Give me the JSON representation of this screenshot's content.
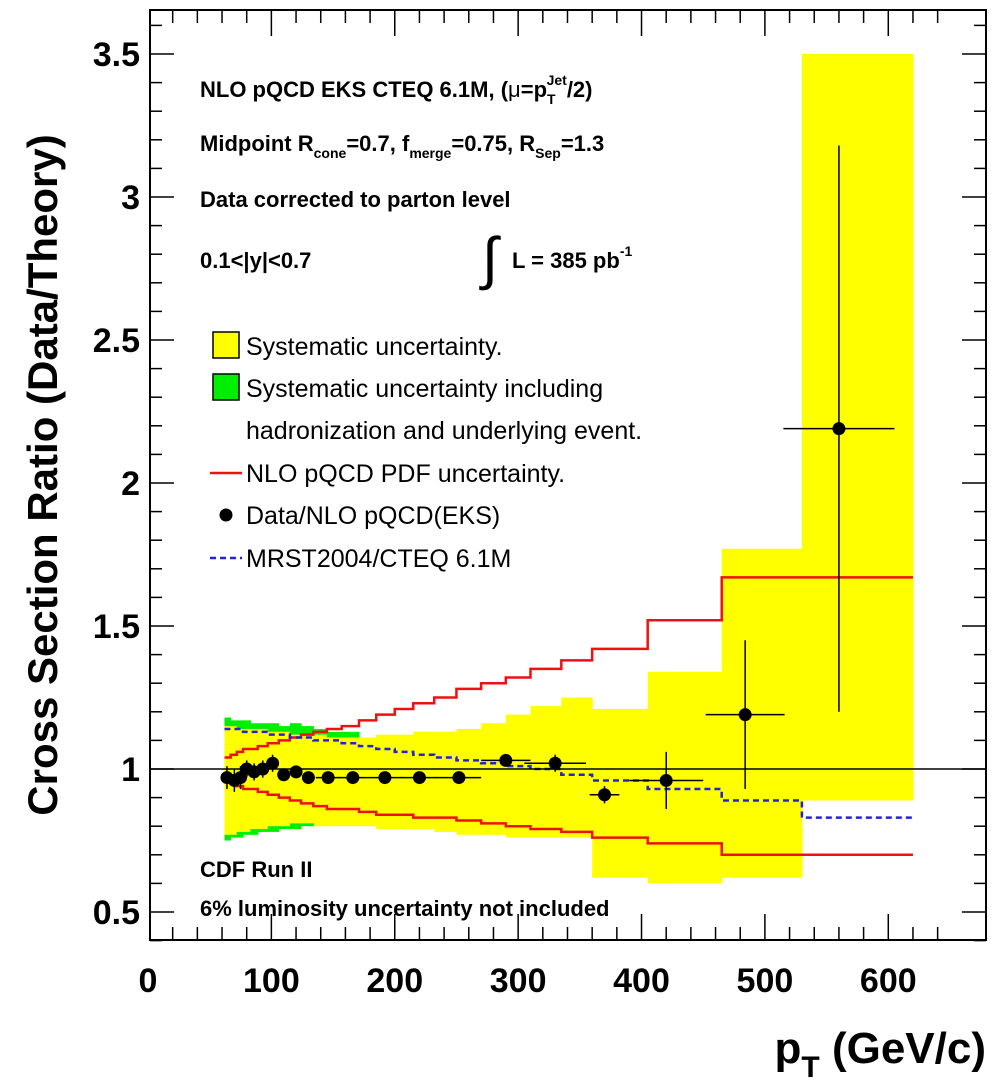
{
  "chart_data": {
    "type": "line",
    "ylabel": "Cross Section Ratio (Data/Theory)",
    "xlabel_main": "p",
    "xlabel_sub": "T",
    "xlabel_unit": " (GeV/c)",
    "xlim": [
      0,
      650
    ],
    "ylim": [
      0.37,
      3.62
    ],
    "x_ticks": [
      0,
      100,
      200,
      300,
      400,
      500,
      600
    ],
    "y_ticks": [
      0.5,
      1,
      1.5,
      2,
      2.5,
      3,
      3.5
    ],
    "reference_line": 1,
    "annotations": {
      "line1_a": "NLO pQCD EKS CTEQ 6.1M, (",
      "line1_mu": "μ",
      "line1_b": "=p",
      "line1_sub": "T",
      "line1_sup": "Jet",
      "line1_c": "/2)",
      "line2_a": "Midpoint R",
      "line2_sub1": "cone",
      "line2_b": "=0.7, f",
      "line2_sub2": "merge",
      "line2_c": "=0.75, R",
      "line2_sub3": "Sep",
      "line2_d": "=1.3",
      "line3": "Data corrected to parton level",
      "line4": "0.1<|y|<0.7",
      "integral": "∫",
      "lumi": "L = 385 pb",
      "lumi_sup": "-1",
      "cdf": "CDF Run II",
      "lumi_note": "6% luminosity  uncertainty not included"
    },
    "legend": {
      "placement": "center-left",
      "items": [
        {
          "key": "yellow",
          "label": "Systematic uncertainty."
        },
        {
          "key": "green",
          "label": "Systematic uncertainty including"
        },
        {
          "key": "none",
          "label": "hadronization and underlying event."
        },
        {
          "key": "red",
          "label": "NLO pQCD PDF uncertainty."
        },
        {
          "key": "dot",
          "label": "Data/NLO pQCD(EKS)"
        },
        {
          "key": "blue",
          "label": "MRST2004/CTEQ 6.1M"
        }
      ]
    },
    "colors": {
      "yellow": "#ffff00",
      "green": "#00ee00",
      "red": "#ee1111",
      "blue": "#2222dd",
      "data": "#000000"
    },
    "bin_edges": [
      62,
      67,
      72,
      77,
      83,
      89,
      97,
      106,
      115,
      124,
      134,
      145,
      157,
      171,
      185,
      200,
      215,
      232,
      250,
      270,
      290,
      310,
      335,
      360,
      405,
      465,
      530,
      620
    ],
    "yellow_band": {
      "upper": [
        1.15,
        1.15,
        1.14,
        1.14,
        1.14,
        1.14,
        1.13,
        1.13,
        1.12,
        1.12,
        1.12,
        1.11,
        1.11,
        1.11,
        1.12,
        1.12,
        1.13,
        1.13,
        1.14,
        1.16,
        1.19,
        1.22,
        1.25,
        1.21,
        1.34,
        1.77,
        3.5
      ],
      "lower": [
        0.77,
        0.77,
        0.78,
        0.78,
        0.79,
        0.79,
        0.8,
        0.8,
        0.81,
        0.81,
        0.8,
        0.8,
        0.8,
        0.8,
        0.79,
        0.79,
        0.79,
        0.78,
        0.77,
        0.77,
        0.76,
        0.76,
        0.76,
        0.62,
        0.6,
        0.62,
        0.89
      ]
    },
    "green_band": {
      "upper": [
        1.18,
        1.17,
        1.17,
        1.17,
        1.16,
        1.16,
        1.16,
        1.15,
        1.16,
        1.15,
        1.14,
        1.13,
        1.13
      ],
      "lower": [
        0.75,
        0.76,
        0.76,
        0.77,
        0.77,
        0.78,
        0.78,
        0.79,
        0.79,
        0.8,
        0.8,
        0.8,
        0.8
      ]
    },
    "red_upper": [
      1.04,
      1.05,
      1.06,
      1.07,
      1.07,
      1.08,
      1.09,
      1.1,
      1.11,
      1.12,
      1.13,
      1.14,
      1.15,
      1.17,
      1.19,
      1.21,
      1.23,
      1.25,
      1.28,
      1.3,
      1.32,
      1.35,
      1.38,
      1.42,
      1.52,
      1.67,
      1.67
    ],
    "red_lower": [
      0.96,
      0.95,
      0.94,
      0.93,
      0.93,
      0.92,
      0.91,
      0.9,
      0.89,
      0.88,
      0.87,
      0.86,
      0.86,
      0.85,
      0.84,
      0.84,
      0.83,
      0.83,
      0.82,
      0.81,
      0.8,
      0.79,
      0.78,
      0.76,
      0.74,
      0.7,
      0.7
    ],
    "blue_dashed": [
      1.14,
      1.14,
      1.14,
      1.13,
      1.13,
      1.13,
      1.12,
      1.12,
      1.11,
      1.11,
      1.1,
      1.1,
      1.09,
      1.08,
      1.07,
      1.06,
      1.05,
      1.04,
      1.03,
      1.02,
      1.01,
      1.0,
      0.98,
      0.96,
      0.93,
      0.89,
      0.83
    ],
    "data_points": [
      {
        "x": 64,
        "y": 0.97,
        "xerr": 2.5,
        "yerr": 0.04
      },
      {
        "x": 70,
        "y": 0.96,
        "xerr": 2.5,
        "yerr": 0.04
      },
      {
        "x": 75,
        "y": 0.97,
        "xerr": 2.5,
        "yerr": 0.04
      },
      {
        "x": 80,
        "y": 1.0,
        "xerr": 3,
        "yerr": 0.03
      },
      {
        "x": 86,
        "y": 0.99,
        "xerr": 3,
        "yerr": 0.03
      },
      {
        "x": 93,
        "y": 1.0,
        "xerr": 4,
        "yerr": 0.03
      },
      {
        "x": 101,
        "y": 1.02,
        "xerr": 4.5,
        "yerr": 0.03
      },
      {
        "x": 110,
        "y": 0.98,
        "xerr": 4.5,
        "yerr": 0.02
      },
      {
        "x": 120,
        "y": 0.99,
        "xerr": 4.5,
        "yerr": 0.02
      },
      {
        "x": 130,
        "y": 0.97,
        "xerr": 5,
        "yerr": 0.02
      },
      {
        "x": 146,
        "y": 0.97,
        "xerr": 10,
        "yerr": 0.02
      },
      {
        "x": 166,
        "y": 0.97,
        "xerr": 12,
        "yerr": 0.02
      },
      {
        "x": 192,
        "y": 0.97,
        "xerr": 14,
        "yerr": 0.02
      },
      {
        "x": 220,
        "y": 0.97,
        "xerr": 15,
        "yerr": 0.02
      },
      {
        "x": 252,
        "y": 0.97,
        "xerr": 18,
        "yerr": 0.02
      },
      {
        "x": 290,
        "y": 1.03,
        "xerr": 20,
        "yerr": 0.02
      },
      {
        "x": 330,
        "y": 1.02,
        "xerr": 25,
        "yerr": 0.03
      },
      {
        "x": 370,
        "y": 0.91,
        "xerr": 12,
        "yerr": 0.03
      },
      {
        "x": 420,
        "y": 0.96,
        "xerr": 30,
        "yerr": 0.1
      },
      {
        "x": 484,
        "y": 1.19,
        "xerr": 32,
        "yerr": 0.26
      },
      {
        "x": 560,
        "y": 2.19,
        "xerr": 45,
        "yerr": 0.99
      }
    ]
  }
}
